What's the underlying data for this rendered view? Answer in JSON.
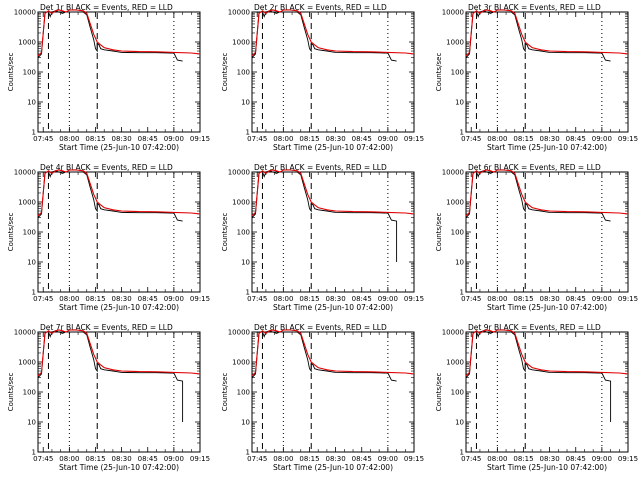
{
  "chart_data": {
    "type": "line",
    "layout": "3x3 grid of panels",
    "shared": {
      "title_suffix": "BLACK = Events, RED = LLD",
      "xlabel": "Start Time (25-Jun-10 07:42:00)",
      "ylabel": "Counts/sec",
      "y_scale": "log",
      "ylim": [
        1,
        10000
      ],
      "y_ticks": [
        "1",
        "10",
        "100",
        "1000",
        "10000"
      ],
      "xlim_minutes_after_0700": [
        42,
        135
      ],
      "x_ticks": [
        "07:45",
        "08:00",
        "08:15",
        "08:30",
        "08:45",
        "09:00",
        "09:15"
      ],
      "colors": {
        "events": "#000000",
        "lld": "#e00000"
      },
      "vertical_markers": [
        {
          "style": "dashed",
          "time": "07:48"
        },
        {
          "style": "dotted",
          "time": "08:00"
        },
        {
          "style": "dashed",
          "time": "08:16"
        },
        {
          "style": "dotted",
          "time": "09:00"
        }
      ],
      "series": [
        {
          "name": "Events",
          "color": "#000000",
          "x": [
            "07:42",
            "07:44",
            "07:46",
            "07:48",
            "07:49",
            "07:50",
            "07:52",
            "07:54",
            "07:56",
            "07:58",
            "08:00",
            "08:04",
            "08:08",
            "08:10",
            "08:12",
            "08:14",
            "08:15",
            "08:16",
            "08:16",
            "08:17",
            "08:18",
            "08:20",
            "08:25",
            "08:30",
            "08:40",
            "08:50",
            "08:58",
            "09:00",
            "09:02",
            "09:05"
          ],
          "y": [
            300,
            400,
            10000,
            10000,
            7000,
            10000,
            11000,
            10000,
            9000,
            10000,
            10000,
            10000,
            10000,
            8000,
            3000,
            1200,
            600,
            500,
            900,
            800,
            600,
            550,
            500,
            450,
            440,
            440,
            430,
            430,
            250,
            230
          ]
        },
        {
          "name": "LLD",
          "color": "#e00000",
          "x": [
            "07:42",
            "07:44",
            "07:46",
            "07:48",
            "07:50",
            "07:52",
            "07:54",
            "07:56",
            "07:58",
            "08:00",
            "08:04",
            "08:08",
            "08:10",
            "08:12",
            "08:14",
            "08:16",
            "08:18",
            "08:20",
            "08:25",
            "08:30",
            "08:40",
            "08:50",
            "09:00",
            "09:10",
            "09:15"
          ],
          "y": [
            350,
            450,
            9000,
            11000,
            9000,
            11000,
            12000,
            11000,
            10000,
            12000,
            12000,
            11000,
            9000,
            4000,
            1800,
            1000,
            800,
            650,
            550,
            500,
            480,
            470,
            450,
            430,
            400
          ]
        }
      ]
    },
    "panels": [
      {
        "title": "Det 1r BLACK = Events, RED = LLD",
        "events_tail": "flat"
      },
      {
        "title": "Det 2r BLACK = Events, RED = LLD",
        "events_tail": "flat"
      },
      {
        "title": "Det 3r BLACK = Events, RED = LLD",
        "events_tail": "flat"
      },
      {
        "title": "Det 4r BLACK = Events, RED = LLD",
        "events_tail": "flat"
      },
      {
        "title": "Det 5r BLACK = Events, RED = LLD",
        "events_tail": "drop"
      },
      {
        "title": "Det 6r BLACK = Events, RED = LLD",
        "events_tail": "flat"
      },
      {
        "title": "Det 7r BLACK = Events, RED = LLD",
        "events_tail": "drop"
      },
      {
        "title": "Det 8r BLACK = Events, RED = LLD",
        "events_tail": "flat"
      },
      {
        "title": "Det 9r BLACK = Events, RED = LLD",
        "events_tail": "drop"
      }
    ]
  }
}
